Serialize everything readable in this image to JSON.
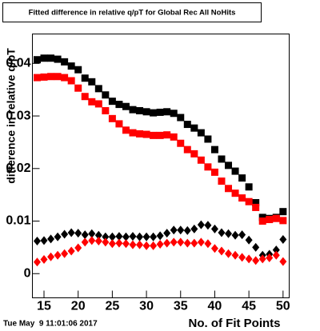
{
  "chart_data": {
    "type": "scatter",
    "title": "Fitted difference in relative q/pT for Global Rec All NoHits",
    "xlabel": "No. of Fit Points",
    "ylabel": "difference in relative q/pT",
    "timestamp": "Tue May  9 11:01:06 2017",
    "x": [
      14,
      15,
      16,
      17,
      18,
      19,
      20,
      21,
      22,
      23,
      24,
      25,
      26,
      27,
      28,
      29,
      30,
      31,
      32,
      33,
      34,
      35,
      36,
      37,
      38,
      39,
      40,
      41,
      42,
      43,
      44,
      45,
      46,
      47,
      48,
      49,
      50
    ],
    "xlim": [
      13.3,
      50.9
    ],
    "xticks": [
      15,
      20,
      25,
      30,
      35,
      40,
      45,
      50
    ],
    "ylim": [
      -0.0046,
      0.0456
    ],
    "yticks": [
      0,
      0.01,
      0.02,
      0.03,
      0.04
    ],
    "series": [
      {
        "color": "#000000",
        "marker": "square",
        "values": [
          0.0407,
          0.041,
          0.041,
          0.0408,
          0.0403,
          0.0395,
          0.0388,
          0.0372,
          0.0365,
          0.0352,
          0.034,
          0.0328,
          0.0322,
          0.0318,
          0.0312,
          0.031,
          0.0308,
          0.0306,
          0.0307,
          0.0308,
          0.0305,
          0.0297,
          0.0284,
          0.0277,
          0.0268,
          0.0256,
          0.0236,
          0.0218,
          0.0206,
          0.0195,
          0.0182,
          0.0165,
          0.0135,
          0.0107,
          0.0105,
          0.0107,
          0.0118
        ]
      },
      {
        "color": "#ff0000",
        "marker": "square",
        "values": [
          0.0373,
          0.0374,
          0.0375,
          0.0375,
          0.0373,
          0.0367,
          0.0353,
          0.0337,
          0.0327,
          0.0323,
          0.031,
          0.0295,
          0.0285,
          0.0273,
          0.0268,
          0.0266,
          0.0265,
          0.0263,
          0.0263,
          0.0264,
          0.026,
          0.0248,
          0.0236,
          0.0228,
          0.0216,
          0.0203,
          0.0193,
          0.0176,
          0.0162,
          0.0153,
          0.0144,
          0.0137,
          0.0126,
          0.01,
          0.0103,
          0.0105,
          0.0101
        ]
      },
      {
        "color": "#000000",
        "marker": "diamond",
        "values": [
          0.0062,
          0.0063,
          0.0066,
          0.007,
          0.0075,
          0.0078,
          0.0077,
          0.0074,
          0.0076,
          0.0073,
          0.007,
          0.007,
          0.0071,
          0.007,
          0.0071,
          0.007,
          0.007,
          0.007,
          0.0072,
          0.0077,
          0.0083,
          0.0083,
          0.0082,
          0.0085,
          0.0093,
          0.0092,
          0.0085,
          0.0078,
          0.0076,
          0.0073,
          0.0074,
          0.0064,
          0.005,
          0.0035,
          0.0037,
          0.0045,
          0.0065
        ]
      },
      {
        "color": "#ff0000",
        "marker": "diamond",
        "values": [
          0.0022,
          0.0027,
          0.0032,
          0.0035,
          0.0038,
          0.0043,
          0.0049,
          0.006,
          0.0063,
          0.0062,
          0.006,
          0.0057,
          0.0058,
          0.0057,
          0.0055,
          0.0055,
          0.0053,
          0.0053,
          0.0056,
          0.0058,
          0.006,
          0.006,
          0.0058,
          0.0058,
          0.006,
          0.0057,
          0.0048,
          0.0043,
          0.0038,
          0.0035,
          0.0031,
          0.0028,
          0.0025,
          0.0028,
          0.003,
          0.0035,
          0.0023
        ]
      }
    ]
  }
}
